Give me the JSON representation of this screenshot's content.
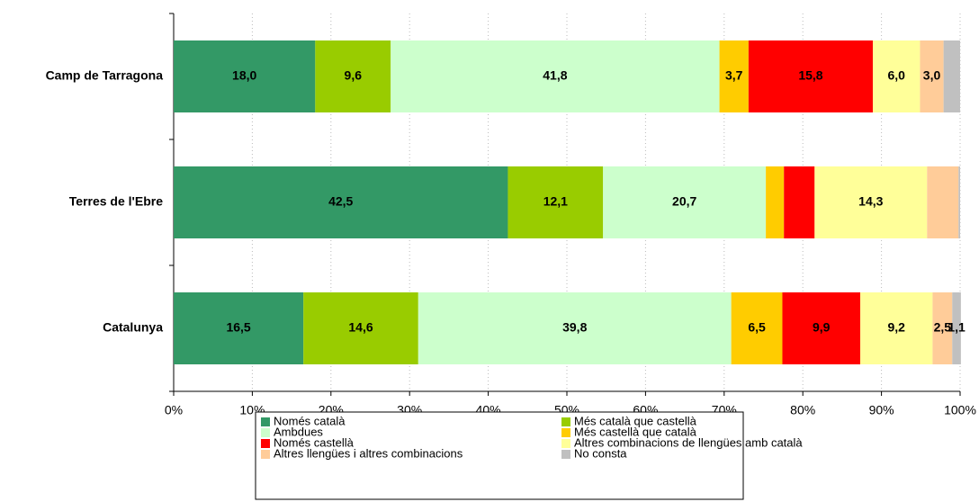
{
  "chart_data": {
    "type": "stacked_bar_horizontal",
    "categories": [
      "Camp de Tarragona",
      "Terres de l'Ebre",
      "Catalunya"
    ],
    "series": [
      {
        "name": "Només català",
        "color": "#339966",
        "values": [
          18.0,
          42.5,
          16.5
        ],
        "value_labels": [
          "18,0",
          "42,5",
          "16,5"
        ]
      },
      {
        "name": "Més català que castellà",
        "color": "#99cc00",
        "values": [
          9.6,
          12.1,
          14.6
        ],
        "value_labels": [
          "9,6",
          "12,1",
          "14,6"
        ]
      },
      {
        "name": "Ambdues",
        "color": "#ccffcc",
        "values": [
          41.8,
          20.7,
          39.8
        ],
        "value_labels": [
          "41,8",
          "20,7",
          "39,8"
        ]
      },
      {
        "name": "Més castellà que català",
        "color": "#ffcc00",
        "values": [
          3.7,
          2.3,
          6.5
        ],
        "value_labels": [
          "3,7",
          null,
          "6,5"
        ]
      },
      {
        "name": "Només castellà",
        "color": "#ff0000",
        "values": [
          15.8,
          3.9,
          9.9
        ],
        "value_labels": [
          "15,8",
          null,
          "9,9"
        ]
      },
      {
        "name": "Altres combinacions de llengües amb català",
        "color": "#ffff99",
        "values": [
          6.0,
          14.3,
          9.2
        ],
        "value_labels": [
          "6,0",
          "14,3",
          "9,2"
        ]
      },
      {
        "name": "Altres llengües i altres  combinacions",
        "color": "#ffcc99",
        "values": [
          3.0,
          4.0,
          2.5
        ],
        "value_labels": [
          "3,0",
          null,
          "2,5"
        ]
      },
      {
        "name": "No consta",
        "color": "#c0c0c0",
        "values": [
          2.1,
          0.2,
          1.1
        ],
        "value_labels": [
          null,
          null,
          "1,1"
        ]
      }
    ],
    "xlim": [
      0,
      100
    ],
    "xticks": [
      {
        "value": 0,
        "label": "0%"
      },
      {
        "value": 10,
        "label": "10%"
      },
      {
        "value": 20,
        "label": "20%"
      },
      {
        "value": 30,
        "label": "30%"
      },
      {
        "value": 40,
        "label": "40%"
      },
      {
        "value": 50,
        "label": "50%"
      },
      {
        "value": 60,
        "label": "60%"
      },
      {
        "value": 70,
        "label": "70%"
      },
      {
        "value": 80,
        "label": "80%"
      },
      {
        "value": 90,
        "label": "90%"
      },
      {
        "value": 100,
        "label": "100%"
      }
    ],
    "grid": true,
    "legend": "bottom"
  }
}
